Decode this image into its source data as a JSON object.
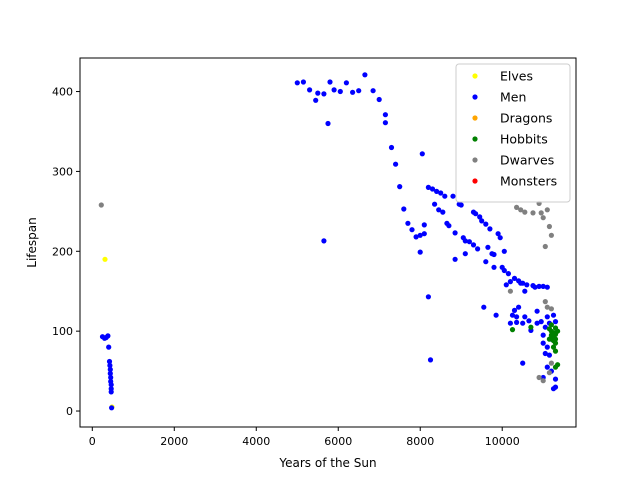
{
  "chart_data": {
    "type": "scatter",
    "title": "",
    "xlabel": "Years of the Sun",
    "ylabel": "Lifespan",
    "xlim": [
      -300,
      11800
    ],
    "ylim": [
      -20,
      442
    ],
    "xticks": [
      0,
      2000,
      4000,
      6000,
      8000,
      10000
    ],
    "xtick_labels": [
      "0",
      "2000",
      "4000",
      "6000",
      "8000",
      "10000"
    ],
    "yticks": [
      0,
      100,
      200,
      300,
      400
    ],
    "ytick_labels": [
      "0",
      "100",
      "200",
      "300",
      "400"
    ],
    "grid": false,
    "legend_position": "top-right",
    "series": [
      {
        "name": "Elves",
        "color": "#ffff00",
        "points": [
          [
            310,
            190
          ],
          [
            480,
            5
          ]
        ]
      },
      {
        "name": "Men",
        "color": "#0000ff",
        "points": [
          [
            250,
            93
          ],
          [
            300,
            91
          ],
          [
            340,
            92
          ],
          [
            380,
            94
          ],
          [
            400,
            80
          ],
          [
            420,
            62
          ],
          [
            430,
            57
          ],
          [
            440,
            52
          ],
          [
            440,
            47
          ],
          [
            450,
            42
          ],
          [
            450,
            37
          ],
          [
            460,
            33
          ],
          [
            460,
            28
          ],
          [
            460,
            24
          ],
          [
            470,
            4
          ],
          [
            5000,
            411
          ],
          [
            5150,
            412
          ],
          [
            5300,
            402
          ],
          [
            5450,
            389
          ],
          [
            5500,
            398
          ],
          [
            5650,
            397
          ],
          [
            5650,
            213
          ],
          [
            5750,
            360
          ],
          [
            5800,
            412
          ],
          [
            5900,
            402
          ],
          [
            6050,
            400
          ],
          [
            6200,
            411
          ],
          [
            6350,
            399
          ],
          [
            6500,
            401
          ],
          [
            6650,
            421
          ],
          [
            6850,
            401
          ],
          [
            7000,
            390
          ],
          [
            7150,
            371
          ],
          [
            7150,
            361
          ],
          [
            7300,
            330
          ],
          [
            7400,
            309
          ],
          [
            7500,
            281
          ],
          [
            7600,
            253
          ],
          [
            7700,
            235
          ],
          [
            7800,
            227
          ],
          [
            7900,
            218
          ],
          [
            8000,
            220
          ],
          [
            8000,
            199
          ],
          [
            8050,
            322
          ],
          [
            8100,
            233
          ],
          [
            8100,
            222
          ],
          [
            8200,
            280
          ],
          [
            8200,
            143
          ],
          [
            8250,
            64
          ],
          [
            8300,
            278
          ],
          [
            8350,
            259
          ],
          [
            8400,
            275
          ],
          [
            8450,
            252
          ],
          [
            8500,
            273
          ],
          [
            8550,
            249
          ],
          [
            8600,
            269
          ],
          [
            8650,
            235
          ],
          [
            8700,
            232
          ],
          [
            8800,
            269
          ],
          [
            8850,
            190
          ],
          [
            8850,
            223
          ],
          [
            8950,
            259
          ],
          [
            9000,
            258
          ],
          [
            9050,
            217
          ],
          [
            9100,
            197
          ],
          [
            9100,
            213
          ],
          [
            9200,
            212
          ],
          [
            9300,
            249
          ],
          [
            9300,
            208
          ],
          [
            9350,
            247
          ],
          [
            9400,
            203
          ],
          [
            9450,
            243
          ],
          [
            9500,
            238
          ],
          [
            9550,
            130
          ],
          [
            9600,
            234
          ],
          [
            9600,
            187
          ],
          [
            9650,
            205
          ],
          [
            9700,
            228
          ],
          [
            9750,
            197
          ],
          [
            9800,
            196
          ],
          [
            9800,
            180
          ],
          [
            9850,
            120
          ],
          [
            9900,
            222
          ],
          [
            9950,
            217
          ],
          [
            10000,
            180
          ],
          [
            10050,
            176
          ],
          [
            10050,
            200
          ],
          [
            10100,
            158
          ],
          [
            10150,
            172
          ],
          [
            10200,
            162
          ],
          [
            10200,
            110
          ],
          [
            10250,
            120
          ],
          [
            10300,
            166
          ],
          [
            10300,
            126
          ],
          [
            10350,
            118
          ],
          [
            10350,
            111
          ],
          [
            10400,
            163
          ],
          [
            10400,
            130
          ],
          [
            10450,
            160
          ],
          [
            10500,
            160
          ],
          [
            10500,
            110
          ],
          [
            10550,
            150
          ],
          [
            10550,
            118
          ],
          [
            10600,
            158
          ],
          [
            10650,
            113
          ],
          [
            10700,
            101
          ],
          [
            10750,
            157
          ],
          [
            10800,
            155
          ],
          [
            10850,
            125
          ],
          [
            10850,
            110
          ],
          [
            10900,
            156
          ],
          [
            10950,
            112
          ],
          [
            11000,
            156
          ],
          [
            11000,
            95
          ],
          [
            11000,
            85
          ],
          [
            11050,
            72
          ],
          [
            11050,
            105
          ],
          [
            11100,
            155
          ],
          [
            11100,
            118
          ],
          [
            11100,
            80
          ],
          [
            11150,
            110
          ],
          [
            11150,
            70
          ],
          [
            11200,
            90
          ],
          [
            11200,
            50
          ],
          [
            11250,
            28
          ],
          [
            11300,
            40
          ],
          [
            11300,
            30
          ],
          [
            11100,
            55
          ],
          [
            11000,
            42
          ],
          [
            10500,
            60
          ],
          [
            11250,
            120
          ],
          [
            11300,
            112
          ]
        ]
      },
      {
        "name": "Dragons",
        "color": "#ffa500",
        "points": []
      },
      {
        "name": "Hobbits",
        "color": "#008000",
        "points": [
          [
            10250,
            102
          ],
          [
            10700,
            105
          ],
          [
            11150,
            103
          ],
          [
            11200,
            100
          ],
          [
            11200,
            95
          ],
          [
            11250,
            92
          ],
          [
            11250,
            98
          ],
          [
            11250,
            88
          ],
          [
            11300,
            104
          ],
          [
            11300,
            96
          ],
          [
            11300,
            90
          ],
          [
            11300,
            85
          ],
          [
            11150,
            90
          ],
          [
            11200,
            108
          ],
          [
            11300,
            75
          ],
          [
            11300,
            55
          ],
          [
            11250,
            80
          ],
          [
            11350,
            58
          ],
          [
            11350,
            100
          ]
        ]
      },
      {
        "name": "Dwarves",
        "color": "#808080",
        "points": [
          [
            220,
            258
          ],
          [
            10200,
            150
          ],
          [
            10350,
            255
          ],
          [
            10450,
            252
          ],
          [
            10550,
            249
          ],
          [
            10750,
            248
          ],
          [
            10900,
            260
          ],
          [
            10950,
            248
          ],
          [
            11000,
            242
          ],
          [
            11050,
            206
          ],
          [
            11100,
            252
          ],
          [
            11150,
            231
          ],
          [
            11200,
            220
          ],
          [
            11050,
            137
          ],
          [
            11100,
            130
          ],
          [
            11200,
            128
          ],
          [
            10900,
            42
          ],
          [
            11000,
            38
          ],
          [
            11150,
            48
          ],
          [
            11200,
            60
          ]
        ]
      },
      {
        "name": "Monsters",
        "color": "#ff0000",
        "points": []
      }
    ]
  }
}
